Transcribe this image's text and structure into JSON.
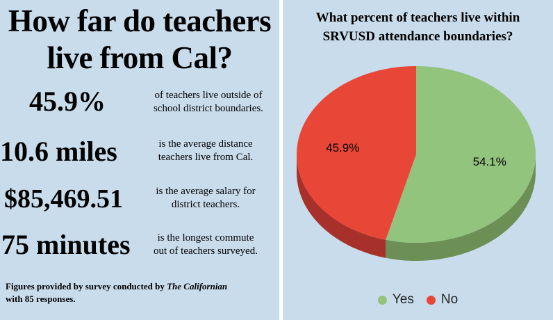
{
  "left": {
    "headline_line1": "How far do teachers",
    "headline_line2": "live from Cal?",
    "stats": [
      {
        "value": "45.9%",
        "desc_line1": "of teachers live outside of",
        "desc_line2": "school district boundaries."
      },
      {
        "value": "10.6 miles",
        "desc_line1": "is the average distance",
        "desc_line2": "teachers live from Cal."
      },
      {
        "value": "$85,469.51",
        "desc_line1": "is the average salary for",
        "desc_line2": "district teachers."
      },
      {
        "value": "75 minutes",
        "desc_line1": "is the longest commute",
        "desc_line2": "out of teachers surveyed."
      }
    ],
    "footnote_part1": "Figures provided by survey conducted by ",
    "footnote_publication": "The Californian",
    "footnote_part2": "with 85 responses."
  },
  "chart_data": {
    "type": "pie",
    "title_line1": "What percent of teachers live within",
    "title_line2": "SRVUSD attendance boundaries?",
    "categories": [
      "Yes",
      "No"
    ],
    "values": [
      54.1,
      45.9
    ],
    "data_labels": [
      "54.1%",
      "45.9%"
    ],
    "colors": [
      "#93c47d",
      "#e84637"
    ],
    "side_colors": [
      "#6b8f55",
      "#a8302a"
    ],
    "legend_position": "bottom",
    "three_d": true
  }
}
